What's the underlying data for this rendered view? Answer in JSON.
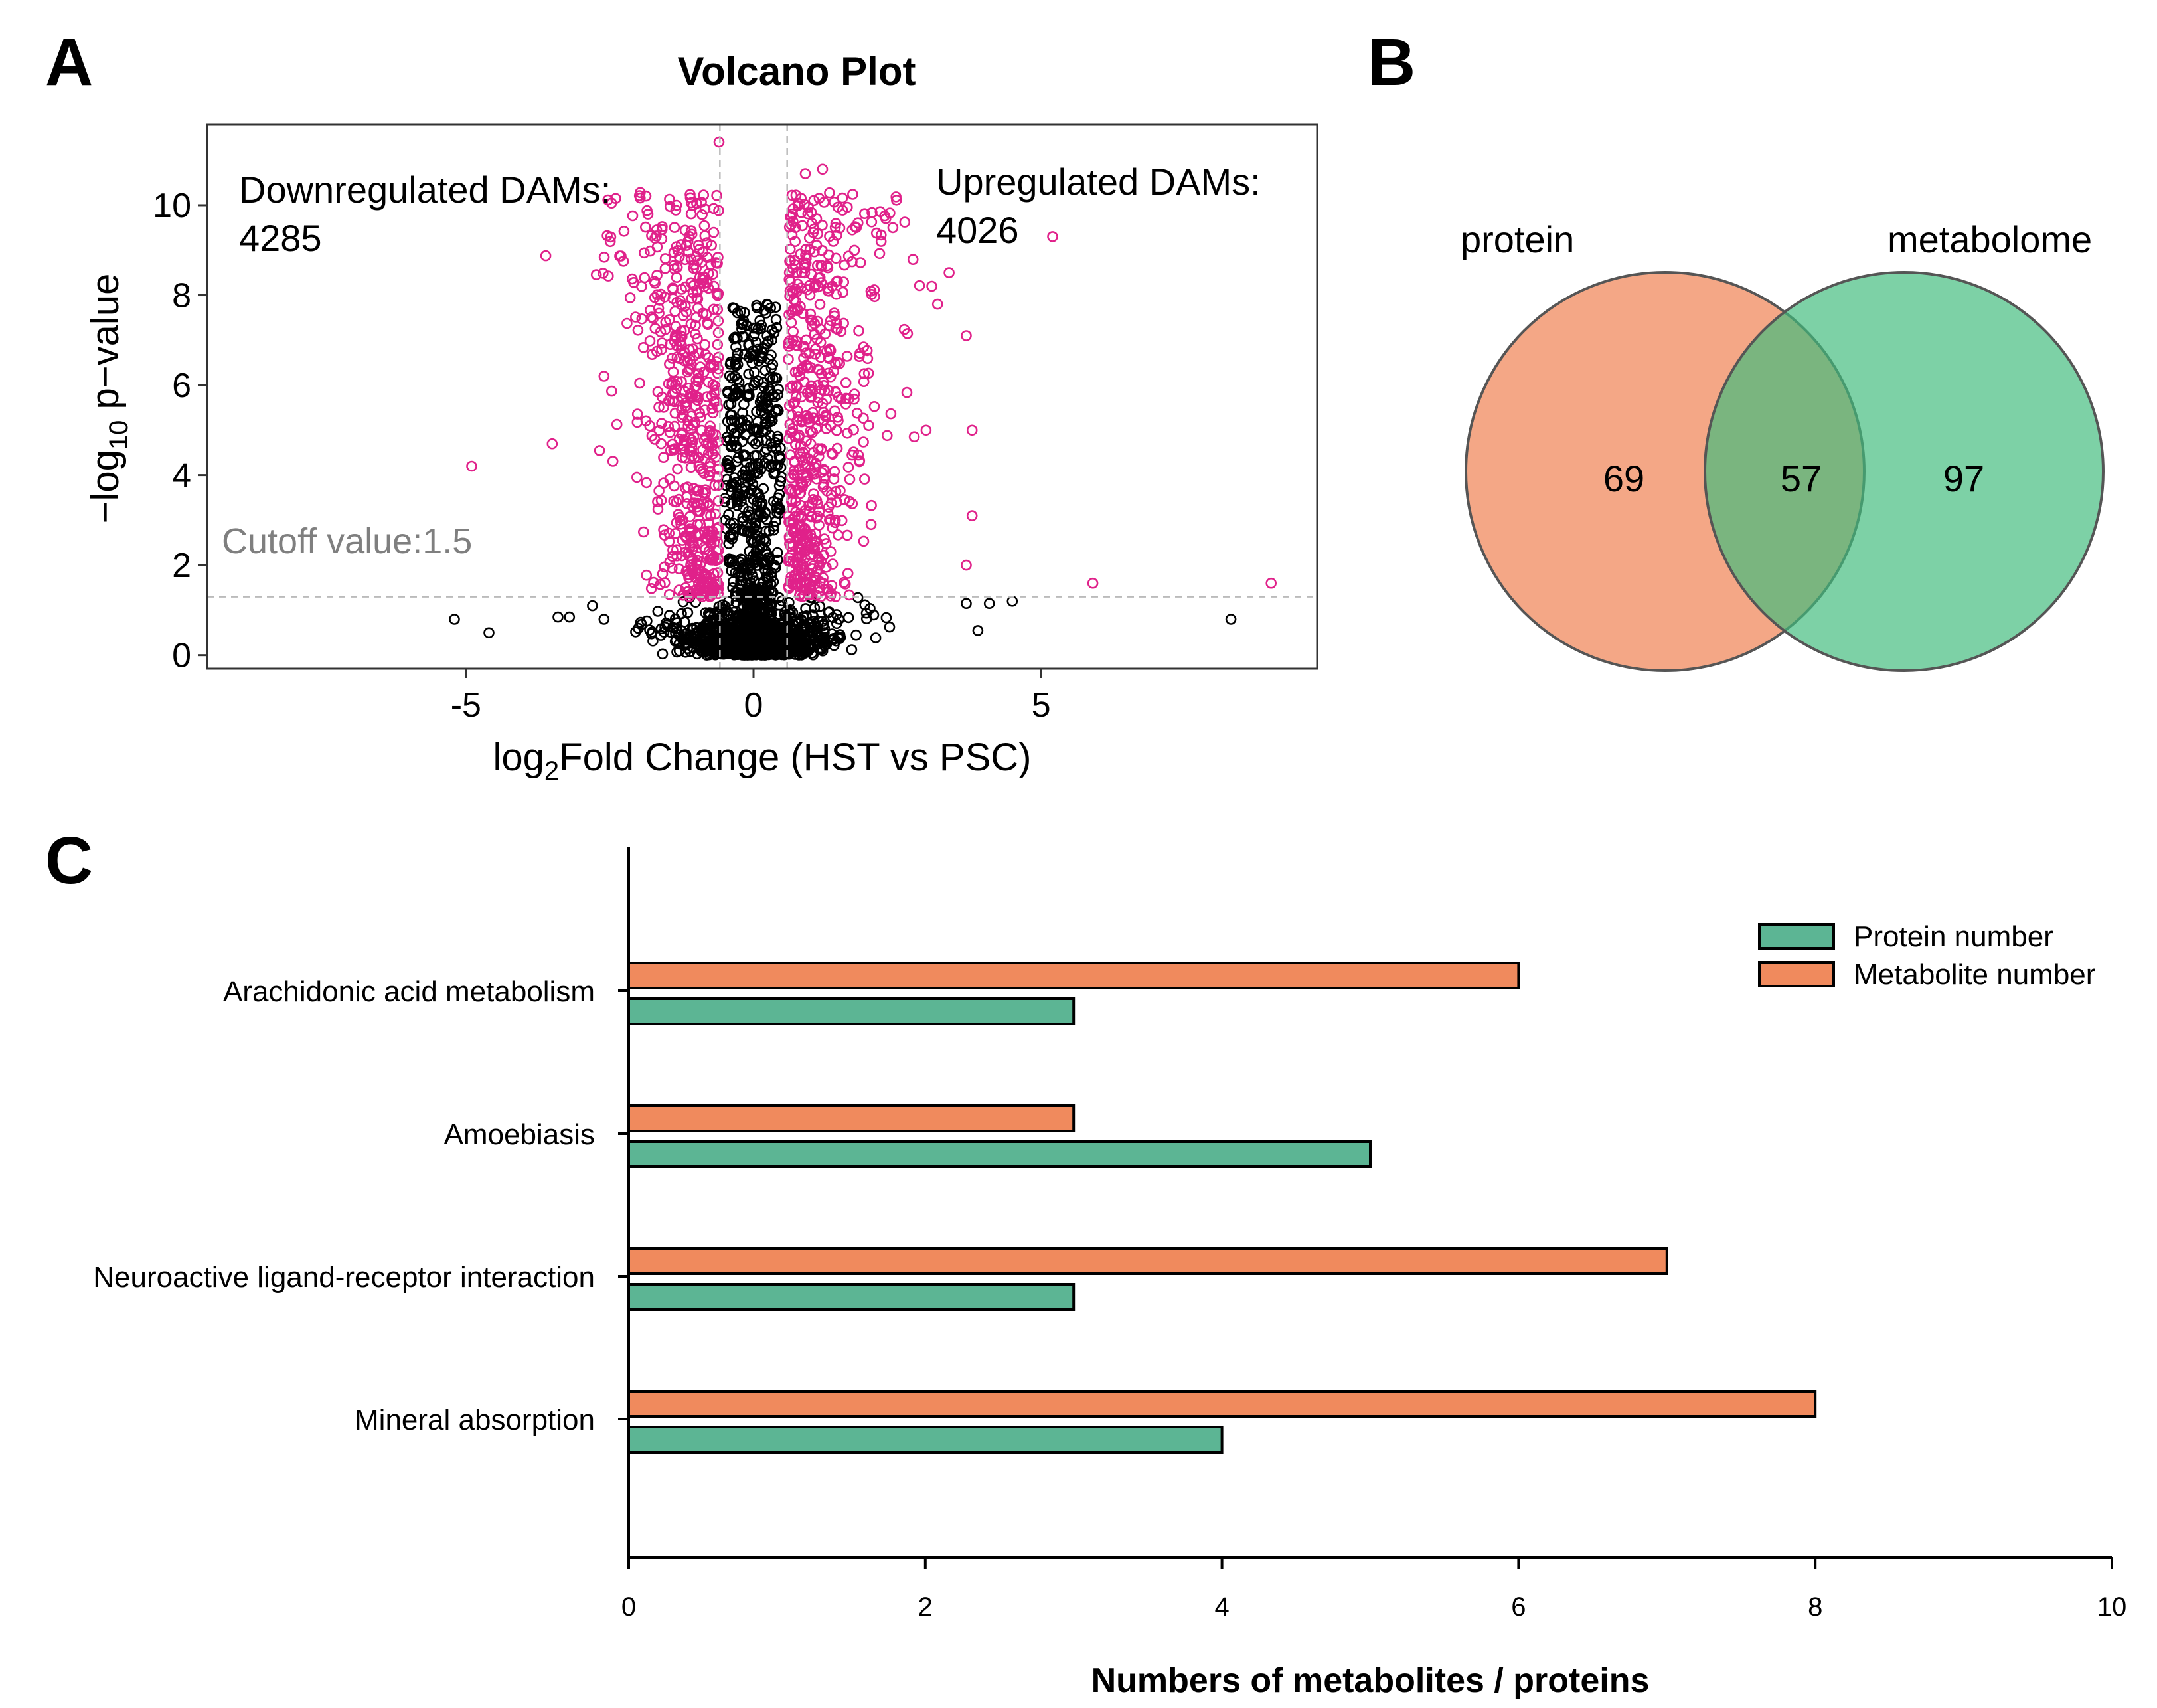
{
  "panels": {
    "a": "A",
    "b": "B",
    "c": "C"
  },
  "chart_data": [
    {
      "type": "scatter",
      "title": "Volcano Plot",
      "xlabel_prefix": "log",
      "xlabel_sub": "2",
      "xlabel_rest": "Fold Change (HST vs PSC)",
      "ylabel_prefix": "−log",
      "ylabel_sub": "10",
      "ylabel_rest": " p−value",
      "xlim": [
        -9.5,
        9.8
      ],
      "ylim": [
        -0.3,
        11.8
      ],
      "xticks": [
        -5,
        0,
        5
      ],
      "xtick_labels": [
        "-5",
        "0",
        "5"
      ],
      "yticks": [
        0,
        2,
        4,
        6,
        8,
        10
      ],
      "ytick_labels": [
        "0",
        "2",
        "4",
        "6",
        "8",
        "10"
      ],
      "fold_cutoffs": [
        -0.585,
        0.585
      ],
      "pvalue_cutoff": 1.3,
      "annotations": {
        "down_label": "Downregulated DAMs:",
        "down_count": "4285",
        "up_label": "Upregulated DAMs:",
        "up_count": "4026",
        "cutoff": "Cutoff value:1.5"
      },
      "colors": {
        "significant": "#e0218a",
        "nonsignificant": "#000000"
      },
      "outlier_points": [
        {
          "x": -5.2,
          "y": 0.8,
          "sig": false
        },
        {
          "x": -4.6,
          "y": 0.5,
          "sig": false
        },
        {
          "x": -3.4,
          "y": 0.85,
          "sig": false
        },
        {
          "x": -3.2,
          "y": 0.85,
          "sig": false
        },
        {
          "x": -2.8,
          "y": 1.1,
          "sig": false
        },
        {
          "x": -2.6,
          "y": 0.8,
          "sig": false
        },
        {
          "x": 3.7,
          "y": 1.15,
          "sig": false
        },
        {
          "x": 3.9,
          "y": 0.55,
          "sig": false
        },
        {
          "x": 4.1,
          "y": 1.15,
          "sig": false
        },
        {
          "x": 4.5,
          "y": 1.2,
          "sig": false
        },
        {
          "x": 8.3,
          "y": 0.8,
          "sig": false
        },
        {
          "x": -4.9,
          "y": 4.2,
          "sig": true
        },
        {
          "x": -3.5,
          "y": 4.7,
          "sig": true
        },
        {
          "x": -2.6,
          "y": 6.2,
          "sig": true
        },
        {
          "x": -0.6,
          "y": 11.4,
          "sig": true
        },
        {
          "x": 0.9,
          "y": 10.7,
          "sig": true
        },
        {
          "x": 1.2,
          "y": 10.8,
          "sig": true
        },
        {
          "x": 2.3,
          "y": 9.7,
          "sig": true
        },
        {
          "x": 5.2,
          "y": 9.3,
          "sig": true
        },
        {
          "x": 3.4,
          "y": 8.5,
          "sig": true
        },
        {
          "x": 3.7,
          "y": 7.1,
          "sig": true
        },
        {
          "x": 3.8,
          "y": 5.0,
          "sig": true
        },
        {
          "x": 3.8,
          "y": 3.1,
          "sig": true
        },
        {
          "x": 3.7,
          "y": 2.0,
          "sig": true
        },
        {
          "x": 5.9,
          "y": 1.6,
          "sig": true
        },
        {
          "x": 9.0,
          "y": 1.6,
          "sig": true
        },
        {
          "x": 3.0,
          "y": 5.0,
          "sig": true
        },
        {
          "x": 3.1,
          "y": 8.2,
          "sig": true
        },
        {
          "x": 3.2,
          "y": 7.8,
          "sig": true
        }
      ]
    },
    {
      "type": "venn",
      "sets": [
        {
          "name": "protein",
          "only": 69,
          "color": "#f08a5d"
        },
        {
          "name": "metabolome",
          "only": 97,
          "color": "#3fbb7c"
        }
      ],
      "intersection": 57,
      "overlap_color": "#8aa35c"
    },
    {
      "type": "bar",
      "orientation": "horizontal",
      "categories": [
        "Arachidonic acid metabolism",
        "Amoebiasis",
        "Neuroactive ligand-receptor interaction",
        "Mineral absorption"
      ],
      "series": [
        {
          "name": "Protein number",
          "color": "#5cb594",
          "values": [
            3,
            5,
            3,
            4
          ]
        },
        {
          "name": "Metabolite number",
          "color": "#f08a5d",
          "values": [
            6,
            3,
            7,
            8
          ]
        }
      ],
      "xlim": [
        0,
        10
      ],
      "xticks": [
        "0",
        "2",
        "4",
        "6",
        "8",
        "10"
      ],
      "xlabel": "Numbers of metabolites / proteins",
      "legend_position": "top-right"
    }
  ]
}
